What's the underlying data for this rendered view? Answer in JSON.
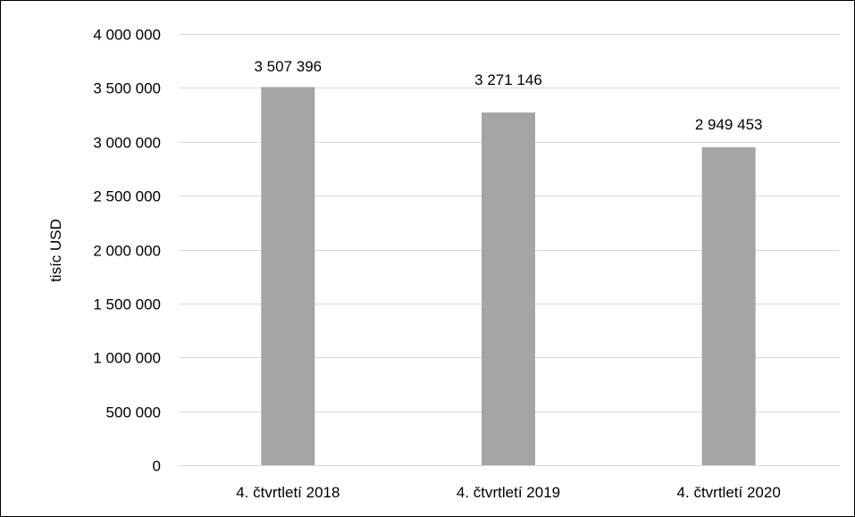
{
  "chart_data": {
    "type": "bar",
    "title": "",
    "xlabel": "",
    "ylabel": "tisíc USD",
    "categories": [
      "4. čtvrtletí 2018",
      "4. čtvrtletí 2019",
      "4. čtvrtletí 2020"
    ],
    "values": [
      3507396,
      3271146,
      2949453
    ],
    "data_labels": [
      "3 507 396",
      "3 271 146",
      "2 949 453"
    ],
    "ylim": [
      0,
      4000000
    ],
    "yticks": [
      0,
      500000,
      1000000,
      1500000,
      2000000,
      2500000,
      3000000,
      3500000,
      4000000
    ],
    "ytick_labels": [
      "0",
      "500 000",
      "1 000 000",
      "1 500 000",
      "2 000 000",
      "2 500 000",
      "3 000 000",
      "3 500 000",
      "4 000 000"
    ],
    "grid": true,
    "legend": "none",
    "colors": {
      "bar": "#a5a5a5",
      "grid": "#d9d9d9"
    }
  }
}
